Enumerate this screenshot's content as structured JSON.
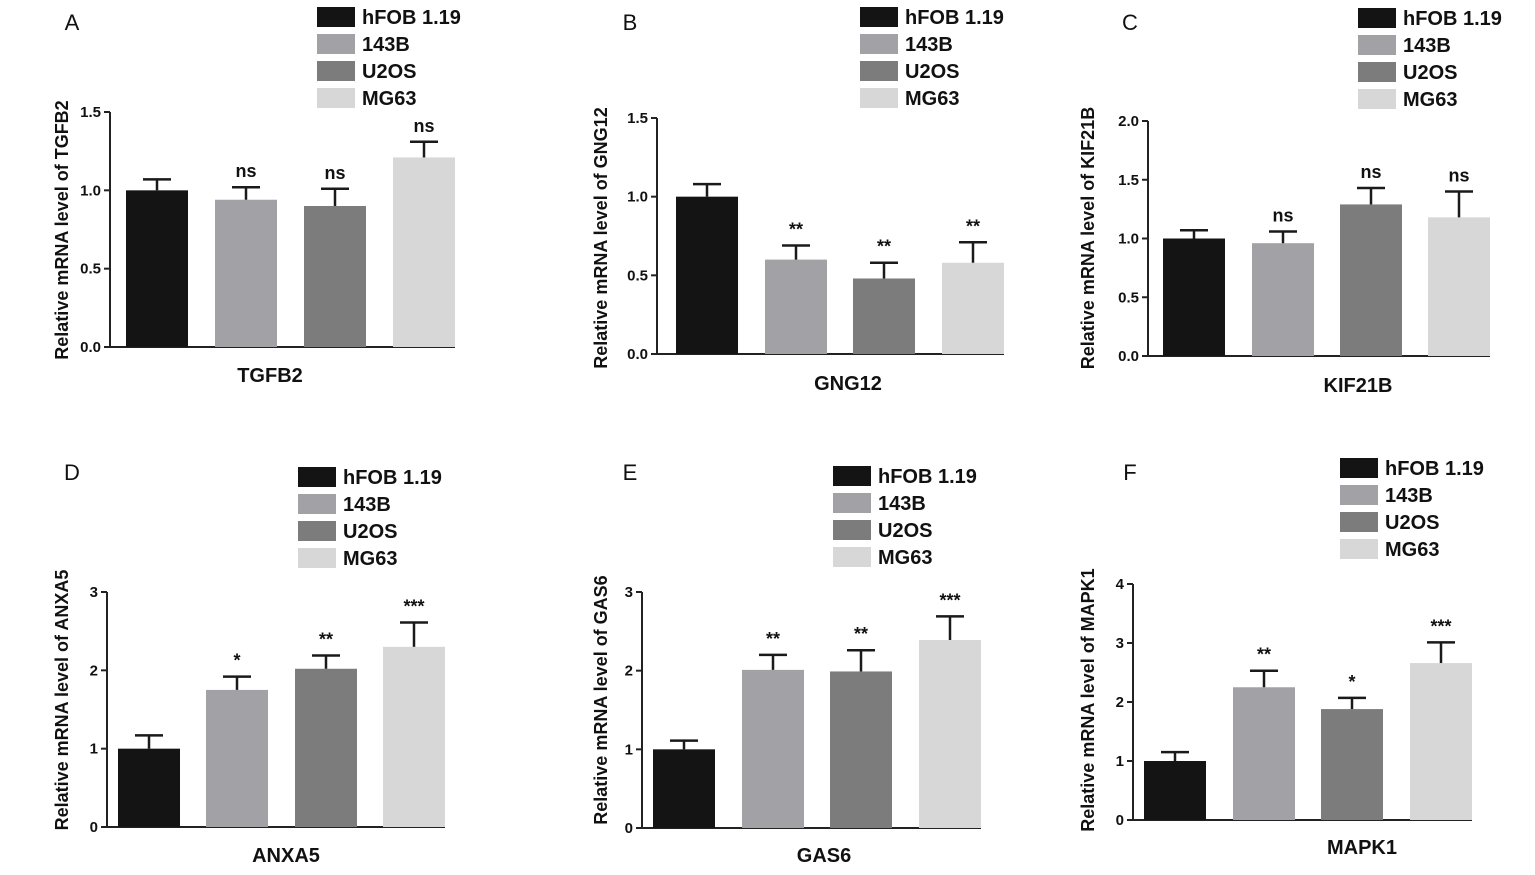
{
  "figure": {
    "series_names": [
      "hFOB 1.19",
      "143B",
      "U2OS",
      "MG63"
    ],
    "series_colors": [
      "#141414",
      "#a2a2a6",
      "#7c7c7c",
      "#d7d7d7"
    ]
  },
  "chart_data": [
    {
      "type": "bar",
      "panel": "A",
      "ylabel": "Relative mRNA level of TGFB2",
      "xlabel": "TGFB2",
      "ylim": [
        0,
        1.5
      ],
      "yticks": [
        "0.0",
        "0.5",
        "1.0",
        "1.5"
      ],
      "categories": [
        "hFOB 1.19",
        "143B",
        "U2OS",
        "MG63"
      ],
      "values": [
        1.0,
        0.94,
        0.9,
        1.21
      ],
      "errors": [
        0.07,
        0.08,
        0.11,
        0.1
      ],
      "significance": [
        "",
        "ns",
        "ns",
        "ns"
      ]
    },
    {
      "type": "bar",
      "panel": "B",
      "ylabel": "Relative mRNA level of GNG12",
      "xlabel": "GNG12",
      "ylim": [
        0,
        1.5
      ],
      "yticks": [
        "0.0",
        "0.5",
        "1.0",
        "1.5"
      ],
      "categories": [
        "hFOB 1.19",
        "143B",
        "U2OS",
        "MG63"
      ],
      "values": [
        1.0,
        0.6,
        0.48,
        0.58
      ],
      "errors": [
        0.08,
        0.09,
        0.1,
        0.13
      ],
      "significance": [
        "",
        "**",
        "**",
        "**"
      ]
    },
    {
      "type": "bar",
      "panel": "C",
      "ylabel": "Relative mRNA level of KIF21B",
      "xlabel": "KIF21B",
      "ylim": [
        0,
        2.0
      ],
      "yticks": [
        "0.0",
        "0.5",
        "1.0",
        "1.5",
        "2.0"
      ],
      "categories": [
        "hFOB 1.19",
        "143B",
        "U2OS",
        "MG63"
      ],
      "values": [
        1.0,
        0.96,
        1.29,
        1.18
      ],
      "errors": [
        0.07,
        0.1,
        0.14,
        0.22
      ],
      "significance": [
        "",
        "ns",
        "ns",
        "ns"
      ]
    },
    {
      "type": "bar",
      "panel": "D",
      "ylabel": "Relative mRNA level of ANXA5",
      "xlabel": "ANXA5",
      "ylim": [
        0,
        3
      ],
      "yticks": [
        "0",
        "1",
        "2",
        "3"
      ],
      "categories": [
        "hFOB 1.19",
        "143B",
        "U2OS",
        "MG63"
      ],
      "values": [
        1.0,
        1.75,
        2.02,
        2.3
      ],
      "errors": [
        0.17,
        0.17,
        0.17,
        0.31
      ],
      "significance": [
        "",
        "*",
        "**",
        "***"
      ]
    },
    {
      "type": "bar",
      "panel": "E",
      "ylabel": "Relative mRNA level of GAS6",
      "xlabel": "GAS6",
      "ylim": [
        0,
        3
      ],
      "yticks": [
        "0",
        "1",
        "2",
        "3"
      ],
      "categories": [
        "hFOB 1.19",
        "143B",
        "U2OS",
        "MG63"
      ],
      "values": [
        1.0,
        2.01,
        1.99,
        2.39
      ],
      "errors": [
        0.11,
        0.19,
        0.27,
        0.3
      ],
      "significance": [
        "",
        "**",
        "**",
        "***"
      ]
    },
    {
      "type": "bar",
      "panel": "F",
      "ylabel": "Relative mRNA level of MAPK1",
      "xlabel": "MAPK1",
      "ylim": [
        0,
        4
      ],
      "yticks": [
        "0",
        "1",
        "2",
        "3",
        "4"
      ],
      "categories": [
        "hFOB 1.19",
        "143B",
        "U2OS",
        "MG63"
      ],
      "values": [
        1.0,
        2.25,
        1.88,
        2.66
      ],
      "errors": [
        0.15,
        0.28,
        0.19,
        0.35
      ],
      "significance": [
        "",
        "**",
        "*",
        "***"
      ]
    }
  ]
}
